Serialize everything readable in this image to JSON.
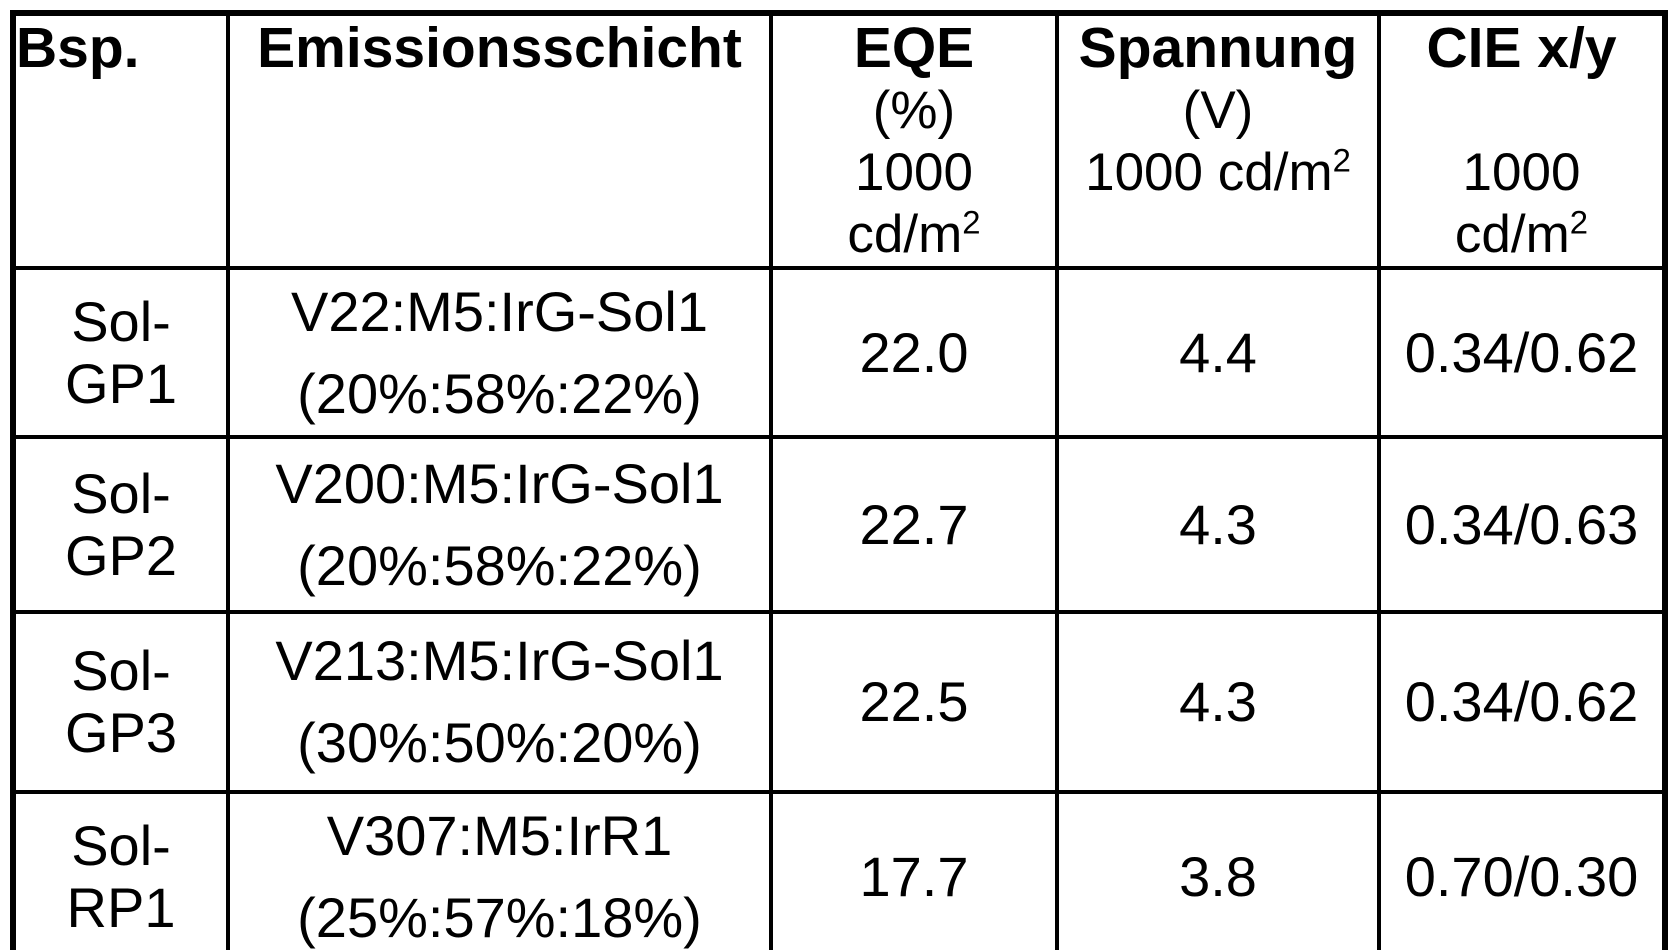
{
  "colors": {
    "background": "#ffffff",
    "border": "#000000",
    "text": "#000000"
  },
  "table": {
    "header": {
      "bsp": {
        "title": "Bsp."
      },
      "emissionsschicht": {
        "title": "Emissionsschicht"
      },
      "eqe": {
        "title": "EQE",
        "unit": "(%)",
        "luminance": "1000",
        "luminance_unit_base": "cd/m",
        "luminance_unit_sup": "2"
      },
      "spannung": {
        "title": "Spannung",
        "unit": "(V)",
        "luminance_base": "1000 cd/m",
        "luminance_sup": "2"
      },
      "cie": {
        "title": "CIE x/y",
        "luminance": "1000",
        "luminance_unit_base": "cd/m",
        "luminance_unit_sup": "2"
      }
    },
    "rows": [
      {
        "id": [
          "Sol-",
          "GP1"
        ],
        "layer": [
          "V22:M5:IrG-Sol1",
          "(20%:58%:22%)"
        ],
        "eqe": "22.0",
        "voltage": "4.4",
        "cie": "0.34/0.62"
      },
      {
        "id": [
          "Sol-",
          "GP2"
        ],
        "layer": [
          "V200:M5:IrG-Sol1",
          "(20%:58%:22%)"
        ],
        "eqe": "22.7",
        "voltage": "4.3",
        "cie": "0.34/0.63"
      },
      {
        "id": [
          "Sol-",
          "GP3"
        ],
        "layer": [
          "V213:M5:IrG-Sol1",
          "(30%:50%:20%)"
        ],
        "eqe": "22.5",
        "voltage": "4.3",
        "cie": "0.34/0.62"
      },
      {
        "id": [
          "Sol-",
          "RP1"
        ],
        "layer": [
          "V307:M5:IrR1",
          "(25%:57%:18%)"
        ],
        "eqe": "17.7",
        "voltage": "3.8",
        "cie": "0.70/0.30"
      }
    ]
  }
}
